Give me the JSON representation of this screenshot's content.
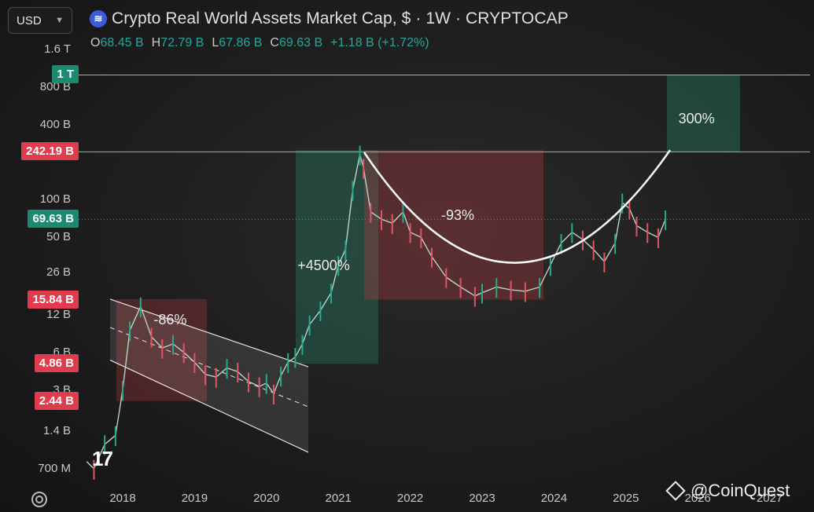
{
  "header": {
    "currency": "USD",
    "title": "Crypto Real World Assets Market Cap, $ · 1W · CRYPTOCAP",
    "ohlc": {
      "o_label": "O",
      "o_value": "68.45 B",
      "h_label": "H",
      "h_value": "72.79 B",
      "l_label": "L",
      "l_value": "67.86 B",
      "c_label": "C",
      "c_value": "69.63 B",
      "change": "+1.18 B (+1.72%)"
    }
  },
  "watermark": "@CoinQuest",
  "chart_data": {
    "type": "line",
    "title": "Crypto Real World Assets Market Cap, $ · 1W · CRYPTOCAP",
    "y_scale": "log",
    "ylim": [
      500000000,
      1800000000000
    ],
    "xlim": [
      2017.5,
      2027.3
    ],
    "y_tick_labels": [
      {
        "value": 1600000000000,
        "label": "1.6 T"
      },
      {
        "value": 800000000000,
        "label": "800 B"
      },
      {
        "value": 400000000000,
        "label": "400 B"
      },
      {
        "value": 100000000000,
        "label": "100 B"
      },
      {
        "value": 50000000000,
        "label": "50 B"
      },
      {
        "value": 26000000000,
        "label": "26 B"
      },
      {
        "value": 12000000000,
        "label": "12 B"
      },
      {
        "value": 6000000000,
        "label": "6 B"
      },
      {
        "value": 3000000000,
        "label": "3 B"
      },
      {
        "value": 1400000000,
        "label": "1.4 B"
      },
      {
        "value": 700000000,
        "label": "700 M"
      }
    ],
    "x_tick_labels": [
      "2018",
      "2019",
      "2020",
      "2021",
      "2022",
      "2023",
      "2024",
      "2025",
      "2026",
      "2027"
    ],
    "price_tags": [
      {
        "label": "1 T",
        "value": 1000000000000,
        "color": "#1a8a70"
      },
      {
        "label": "242.19 B",
        "value": 242190000000,
        "color": "#e03c4d"
      },
      {
        "label": "69.63 B",
        "value": 69630000000,
        "color": "#1a8a70"
      },
      {
        "label": "15.84 B",
        "value": 15840000000,
        "color": "#e03c4d"
      },
      {
        "label": "4.86 B",
        "value": 4860000000,
        "color": "#e03c4d"
      },
      {
        "label": "2.44 B",
        "value": 2440000000,
        "color": "#e03c4d"
      }
    ],
    "series": [
      {
        "name": "",
        "x": [
          2017.5,
          2017.6,
          2017.75,
          2017.9,
          2018.0,
          2018.1,
          2018.25,
          2018.4,
          2018.55,
          2018.7,
          2018.85,
          2019.0,
          2019.15,
          2019.3,
          2019.45,
          2019.6,
          2019.75,
          2019.9,
          2020.0,
          2020.1,
          2020.2,
          2020.3,
          2020.4,
          2020.5,
          2020.6,
          2020.75,
          2020.9,
          2021.0,
          2021.1,
          2021.2,
          2021.3,
          2021.35,
          2021.45,
          2021.6,
          2021.75,
          2021.9,
          2022.0,
          2022.15,
          2022.3,
          2022.5,
          2022.7,
          2022.9,
          2023.0,
          2023.2,
          2023.4,
          2023.6,
          2023.8,
          2023.95,
          2024.1,
          2024.25,
          2024.4,
          2024.55,
          2024.7,
          2024.85,
          2024.95,
          2025.05,
          2025.15,
          2025.3,
          2025.45,
          2025.55
        ],
        "y": [
          800000000,
          700000000,
          1100000000,
          1300000000,
          3000000000,
          9000000000,
          14000000000,
          8000000000,
          6500000000,
          7000000000,
          6000000000,
          5000000000,
          4000000000,
          3800000000,
          4500000000,
          4200000000,
          3500000000,
          3200000000,
          3400000000,
          2800000000,
          3900000000,
          5000000000,
          5500000000,
          7000000000,
          10000000000,
          13000000000,
          18000000000,
          30000000000,
          40000000000,
          120000000000,
          230000000000,
          180000000000,
          80000000000,
          70000000000,
          65000000000,
          80000000000,
          55000000000,
          50000000000,
          35000000000,
          24000000000,
          20000000000,
          17000000000,
          18000000000,
          20000000000,
          19000000000,
          18500000000,
          20000000000,
          30000000000,
          45000000000,
          55000000000,
          48000000000,
          40000000000,
          32000000000,
          45000000000,
          95000000000,
          85000000000,
          62000000000,
          55000000000,
          50000000000,
          69630000000
        ]
      }
    ],
    "annotations": [
      {
        "text": "-86%",
        "x": 2018.65,
        "y": 11000000000
      },
      {
        "text": "+4500%",
        "x": 2020.65,
        "y": 30000000000
      },
      {
        "text": "-93%",
        "x": 2022.65,
        "y": 75000000000
      },
      {
        "text": "300%",
        "x": 2025.95,
        "y": 450000000000
      }
    ],
    "grid": false,
    "legend": "none"
  }
}
